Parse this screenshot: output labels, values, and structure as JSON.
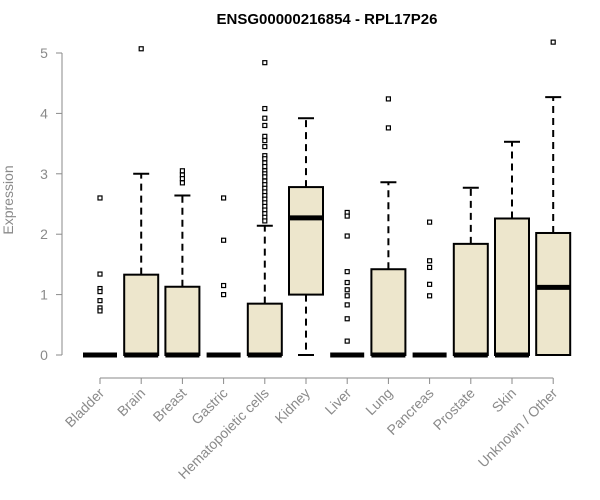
{
  "chart_data": {
    "type": "boxplot",
    "title": "ENSG00000216854 - RPL17P26",
    "ylabel": "Expression",
    "ylim": [
      0,
      5.2
    ],
    "yticks": [
      0,
      1,
      2,
      3,
      4,
      5
    ],
    "box_fill": "#ede6cc",
    "categories": [
      "Bladder",
      "Brain",
      "Breast",
      "Gastric",
      "Hematopoietic cells",
      "Kidney",
      "Liver",
      "Lung",
      "Pancreas",
      "Prostate",
      "Skin",
      "Unknown / Other"
    ],
    "boxes": [
      {
        "q1": 0,
        "median": 0,
        "q3": 0,
        "whisker_low": 0,
        "whisker_high": 0,
        "outliers": [
          2.6,
          1.34,
          1.1,
          1.05,
          0.9,
          0.78,
          0.73
        ]
      },
      {
        "q1": 0,
        "median": 0,
        "q3": 1.33,
        "whisker_low": 0,
        "whisker_high": 3.0,
        "outliers": [
          5.07
        ]
      },
      {
        "q1": 0,
        "median": 0,
        "q3": 1.13,
        "whisker_low": 0,
        "whisker_high": 2.64,
        "outliers": [
          3.05,
          2.98,
          2.92,
          2.85
        ]
      },
      {
        "q1": 0,
        "median": 0,
        "q3": 0,
        "whisker_low": 0,
        "whisker_high": 0,
        "outliers": [
          2.6,
          1.9,
          1.15,
          1.0
        ]
      },
      {
        "q1": 0,
        "median": 0,
        "q3": 0.85,
        "whisker_low": 0,
        "whisker_high": 2.14,
        "outliers": [
          4.84,
          4.08,
          3.92,
          3.8,
          3.62,
          3.55,
          3.45,
          3.3,
          3.25,
          3.18,
          3.12,
          3.05,
          3.0,
          2.95,
          2.88,
          2.82,
          2.76,
          2.7,
          2.64,
          2.58,
          2.52,
          2.46,
          2.4,
          2.34,
          2.28,
          2.22
        ]
      },
      {
        "q1": 1.0,
        "median": 2.27,
        "q3": 2.78,
        "whisker_low": 0,
        "whisker_high": 3.92,
        "outliers": []
      },
      {
        "q1": 0,
        "median": 0,
        "q3": 0,
        "whisker_low": 0,
        "whisker_high": 0,
        "outliers": [
          2.36,
          2.3,
          1.97,
          1.38,
          1.2,
          1.08,
          0.98,
          0.83,
          0.6,
          0.23
        ]
      },
      {
        "q1": 0,
        "median": 0,
        "q3": 1.42,
        "whisker_low": 0,
        "whisker_high": 2.86,
        "outliers": [
          4.24,
          3.76
        ]
      },
      {
        "q1": 0,
        "median": 0,
        "q3": 0,
        "whisker_low": 0,
        "whisker_high": 0,
        "outliers": [
          2.2,
          1.56,
          1.45,
          1.17,
          0.98
        ]
      },
      {
        "q1": 0,
        "median": 0,
        "q3": 1.84,
        "whisker_low": 0,
        "whisker_high": 2.77,
        "outliers": []
      },
      {
        "q1": 0,
        "median": 0,
        "q3": 2.26,
        "whisker_low": 0,
        "whisker_high": 3.53,
        "outliers": []
      },
      {
        "q1": 0,
        "median": 1.12,
        "q3": 2.02,
        "whisker_low": 0,
        "whisker_high": 4.27,
        "outliers": [
          5.18
        ]
      }
    ],
    "grid": false,
    "legend": "none"
  }
}
